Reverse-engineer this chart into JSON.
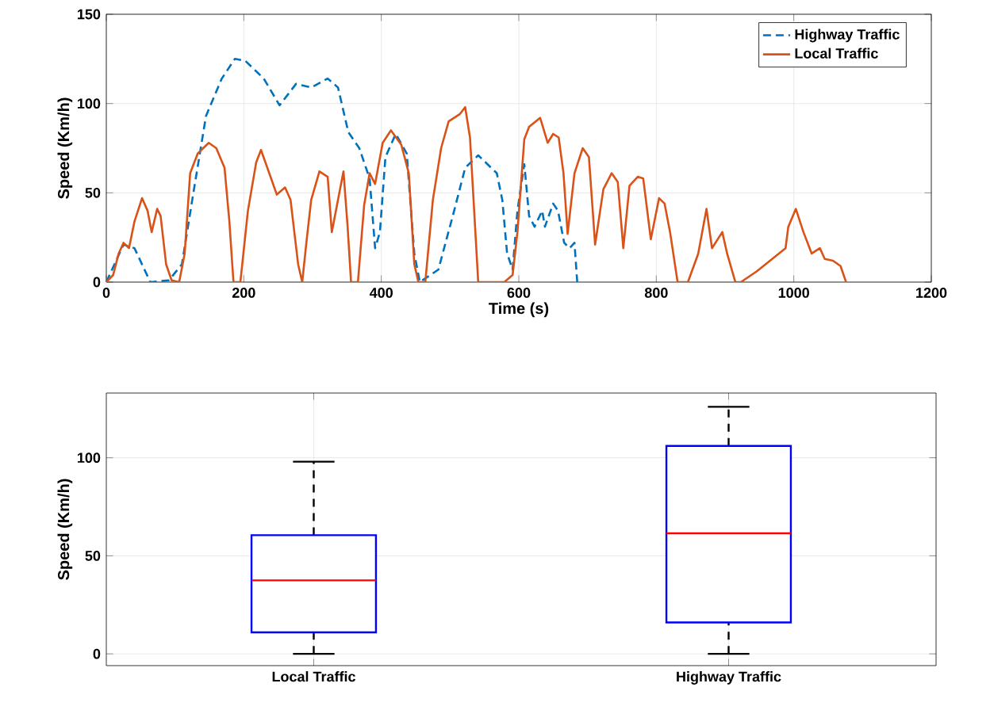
{
  "chart_data": [
    {
      "type": "line",
      "xlabel": "Time (s)",
      "ylabel": "Speed (Km/h)",
      "xlim": [
        0,
        1200
      ],
      "xticks": [
        0,
        200,
        400,
        600,
        800,
        1000,
        1200
      ],
      "ylim": [
        0,
        150
      ],
      "yticks": [
        0,
        50,
        100,
        150
      ],
      "grid": true,
      "legend": "top right",
      "series": [
        {
          "name": "Highway Traffic",
          "color": "#0072bd",
          "line_style": "dashed",
          "x": [
            0,
            25,
            41,
            64,
            91,
            110,
            125,
            145,
            168,
            187,
            202,
            229,
            252,
            276,
            298,
            322,
            337,
            352,
            368,
            383,
            391,
            398,
            406,
            421,
            437,
            448,
            456,
            483,
            506,
            522,
            541,
            568,
            576,
            583,
            591,
            598,
            608,
            615,
            623,
            634,
            638,
            650,
            657,
            666,
            674,
            681,
            685
          ],
          "values": [
            0,
            21,
            19,
            0,
            1,
            10,
            46,
            93,
            114,
            125,
            124,
            114,
            99,
            111,
            109,
            114,
            109,
            84,
            75,
            58,
            19,
            28,
            70,
            83,
            72,
            16,
            0,
            7,
            40,
            64,
            71,
            61,
            46,
            16,
            7,
            40,
            66,
            37,
            31,
            40,
            31,
            44,
            40,
            22,
            19,
            22,
            0
          ]
        },
        {
          "name": "Local Traffic",
          "color": "#d95319",
          "line_style": "solid",
          "x": [
            0,
            10,
            18,
            25,
            33,
            41,
            52,
            60,
            66,
            74,
            79,
            87,
            95,
            106,
            114,
            122,
            133,
            149,
            160,
            172,
            179,
            185,
            195,
            206,
            218,
            225,
            237,
            248,
            260,
            268,
            279,
            285,
            291,
            298,
            310,
            322,
            328,
            337,
            345,
            351,
            356,
            366,
            375,
            383,
            391,
            402,
            414,
            429,
            440,
            448,
            454,
            464,
            475,
            487,
            498,
            514,
            522,
            529,
            541,
            579,
            591,
            598,
            608,
            615,
            631,
            642,
            650,
            658,
            665,
            671,
            681,
            693,
            702,
            711,
            723,
            735,
            744,
            752,
            761,
            773,
            781,
            792,
            804,
            812,
            820,
            831,
            846,
            861,
            873,
            881,
            896,
            903,
            915,
            923,
            946,
            988,
            992,
            1003,
            1014,
            1026,
            1038,
            1045,
            1057,
            1068,
            1076
          ],
          "values": [
            0,
            4,
            16,
            22,
            19,
            34,
            47,
            40,
            28,
            41,
            37,
            10,
            1,
            0,
            16,
            61,
            72,
            78,
            75,
            64,
            34,
            0,
            0,
            40,
            67,
            74,
            61,
            49,
            53,
            46,
            10,
            0,
            22,
            46,
            62,
            59,
            28,
            46,
            62,
            31,
            0,
            0,
            43,
            61,
            55,
            78,
            85,
            77,
            61,
            10,
            0,
            0,
            46,
            75,
            90,
            94,
            98,
            81,
            0,
            0,
            4,
            28,
            80,
            87,
            92,
            78,
            83,
            81,
            61,
            27,
            61,
            75,
            70,
            21,
            52,
            61,
            56,
            19,
            54,
            59,
            58,
            24,
            47,
            44,
            28,
            0,
            0,
            16,
            41,
            19,
            28,
            16,
            0,
            0,
            6,
            19,
            31,
            41,
            28,
            16,
            19,
            13,
            12,
            9,
            0
          ]
        }
      ]
    },
    {
      "type": "box",
      "ylabel": "Speed (Km/h)",
      "categories": [
        "Local Traffic",
        "Highway Traffic"
      ],
      "ylim": [
        -6,
        133
      ],
      "yticks": [
        0,
        50,
        100
      ],
      "grid": true,
      "color": "#0000ff",
      "boxes": [
        {
          "low": 0,
          "q1": 11,
          "median": 37.5,
          "q3": 60.5,
          "high": 98
        },
        {
          "low": 0,
          "q1": 16,
          "median": 61.5,
          "q3": 106,
          "high": 126
        }
      ]
    }
  ]
}
